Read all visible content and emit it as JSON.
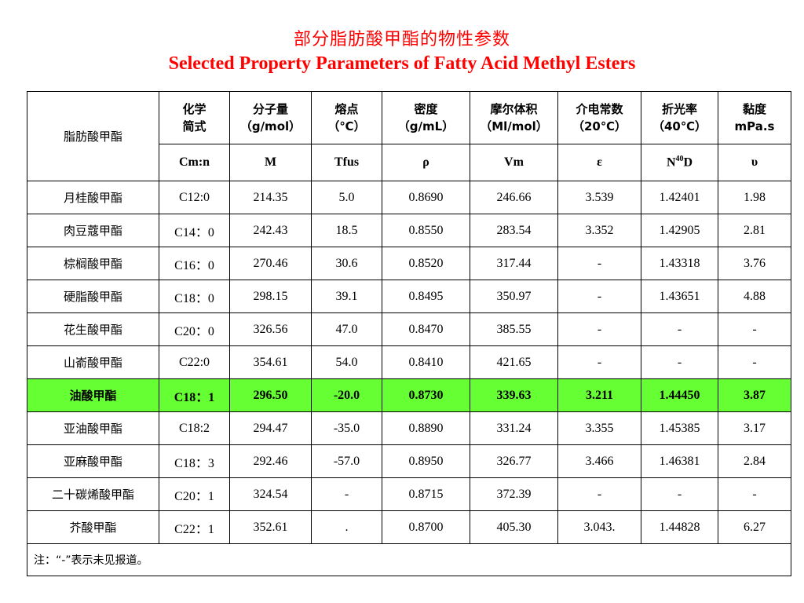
{
  "title": {
    "zh": "部分脂肪酸甲酯的物性参数",
    "en": "Selected Property Parameters of Fatty Acid Methyl Esters"
  },
  "colors": {
    "title": "#ff0000",
    "highlight_row": "#66ff33",
    "border": "#000000"
  },
  "table": {
    "corner_header": "脂肪酸甲酯",
    "headers": [
      {
        "name": "化学",
        "unit": "简式",
        "symbol": "Cm:n"
      },
      {
        "name": "分子量",
        "unit": "（g/mol）",
        "symbol": "M"
      },
      {
        "name": "熔点",
        "unit": "（℃）",
        "symbol": "Tfus"
      },
      {
        "name": "密度",
        "unit": "（g/mL）",
        "symbol": "ρ"
      },
      {
        "name": "摩尔体积",
        "unit": "（Ml/mol）",
        "symbol": "Vm"
      },
      {
        "name": "介电常数",
        "unit": "（20℃）",
        "symbol": "ε"
      },
      {
        "name": "折光率",
        "unit": "（40℃）",
        "symbol_main": "N",
        "symbol_sup": "40",
        "symbol_tail": "D"
      },
      {
        "name": "黏度",
        "unit": "mPa.s",
        "symbol": "υ"
      }
    ],
    "rows": [
      {
        "name": "月桂酸甲酯",
        "cells": [
          "C12:0",
          "214.35",
          "5.0",
          "0.8690",
          "246.66",
          "3.539",
          "1.42401",
          "1.98"
        ]
      },
      {
        "name": "肉豆蔻甲酯",
        "cells": [
          "C14：0",
          "242.43",
          "18.5",
          "0.8550",
          "283.54",
          "3.352",
          "1.42905",
          "2.81"
        ]
      },
      {
        "name": "棕榈酸甲酯",
        "cells": [
          "C16：0",
          "270.46",
          "30.6",
          "0.8520",
          "317.44",
          "-",
          "1.43318",
          "3.76"
        ]
      },
      {
        "name": "硬脂酸甲酯",
        "cells": [
          "C18：0",
          "298.15",
          "39.1",
          "0.8495",
          "350.97",
          "-",
          "1.43651",
          "4.88"
        ]
      },
      {
        "name": "花生酸甲酯",
        "cells": [
          "C20：0",
          "326.56",
          "47.0",
          "0.8470",
          "385.55",
          "-",
          "-",
          "-"
        ]
      },
      {
        "name": "山嵛酸甲酯",
        "cells": [
          "C22:0",
          "354.61",
          "54.0",
          "0.8410",
          "421.65",
          "-",
          "-",
          "-"
        ]
      },
      {
        "name": "油酸甲酯",
        "cells": [
          "C18：1",
          "296.50",
          "-20.0",
          "0.8730",
          "339.63",
          "3.211",
          "1.44450",
          "3.87"
        ]
      },
      {
        "name": "亚油酸甲酯",
        "cells": [
          "C18:2",
          "294.47",
          "-35.0",
          "0.8890",
          "331.24",
          "3.355",
          "1.45385",
          "3.17"
        ]
      },
      {
        "name": "亚麻酸甲酯",
        "cells": [
          "C18：3",
          "292.46",
          "-57.0",
          "0.8950",
          "326.77",
          "3.466",
          "1.46381",
          "2.84"
        ]
      },
      {
        "name": "二十碳烯酸甲酯",
        "cells": [
          "C20：1",
          "324.54",
          "-",
          "0.8715",
          "372.39",
          "-",
          "-",
          "-"
        ]
      },
      {
        "name": "芥酸甲酯",
        "cells": [
          "C22：1",
          "352.61",
          ".",
          "0.8700",
          "405.30",
          "3.043.",
          "1.44828",
          "6.27"
        ]
      }
    ],
    "highlighted_row": 6,
    "note": "注：“-”表示未见报道。"
  }
}
